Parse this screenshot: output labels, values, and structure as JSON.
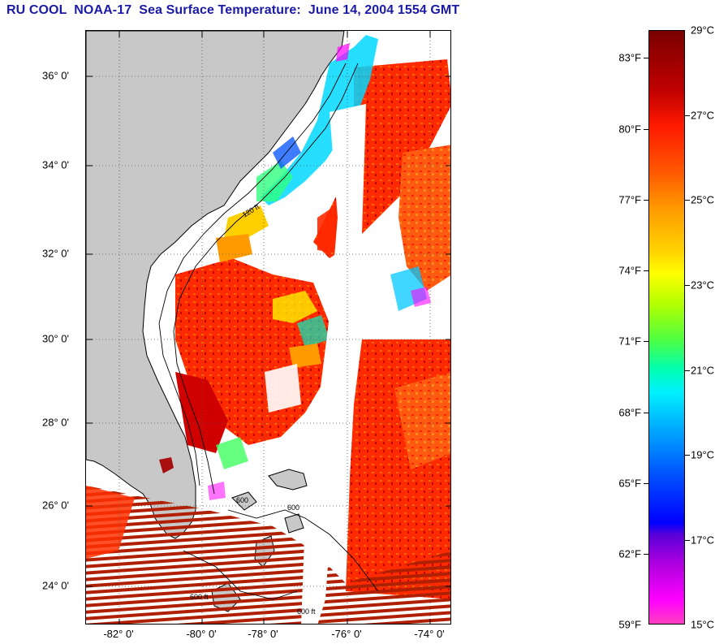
{
  "title": "RU COOL  NOAA-17  Sea Surface Temperature:  June 14, 2004 1554 GMT",
  "map": {
    "lat_labels": [
      "36° 0'",
      "34° 0'",
      "32° 0'",
      "30° 0'",
      "28° 0'",
      "26° 0'",
      "24° 0'"
    ],
    "lon_labels": [
      "-82° 0'",
      "-80° 0'",
      "-78° 0'",
      "-76° 0'",
      "-74° 0'"
    ],
    "contour_labels": [
      "600",
      "600",
      "120 ft",
      "600 ft",
      "600 ft"
    ]
  },
  "colorbar": {
    "celsius_labels": [
      "29°C",
      "27°C",
      "25°C",
      "23°C",
      "21°C",
      "19°C",
      "17°C",
      "15°C"
    ],
    "fahrenheit_labels": [
      "83°F",
      "80°F",
      "77°F",
      "74°F",
      "71°F",
      "68°F",
      "65°F",
      "62°F",
      "59°F"
    ]
  },
  "colors": {
    "land": "#c8c8c8",
    "title": "#1a1aa6",
    "warm": "#ff3000",
    "hot": "#c00000",
    "cool": "#00a0ff"
  }
}
